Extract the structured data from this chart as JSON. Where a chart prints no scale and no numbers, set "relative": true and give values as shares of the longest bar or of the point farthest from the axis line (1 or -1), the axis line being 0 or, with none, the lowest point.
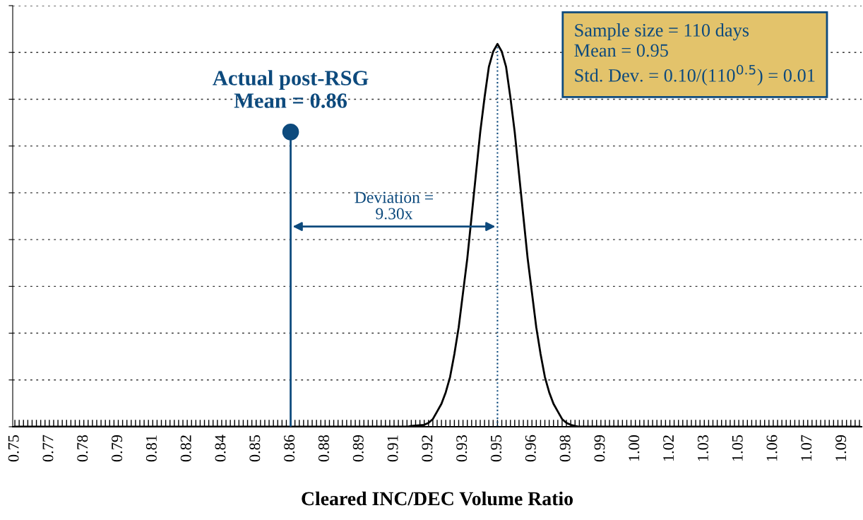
{
  "chart_data": {
    "type": "line",
    "relative": true,
    "xlabel": "Cleared INC/DEC Volume Ratio",
    "grid": "y",
    "tick_labels": "x",
    "legend": false,
    "categories": [
      "0.75",
      null,
      null,
      null,
      null,
      null,
      null,
      null,
      "0.77",
      null,
      null,
      null,
      null,
      null,
      null,
      null,
      "0.78",
      null,
      null,
      null,
      null,
      null,
      null,
      null,
      "0.79",
      null,
      null,
      null,
      null,
      null,
      null,
      null,
      "0.81",
      null,
      null,
      null,
      null,
      null,
      null,
      null,
      "0.82",
      null,
      null,
      null,
      null,
      null,
      null,
      null,
      "0.84",
      null,
      null,
      null,
      null,
      null,
      null,
      null,
      "0.85",
      null,
      null,
      null,
      null,
      null,
      null,
      null,
      "0.86",
      null,
      null,
      null,
      null,
      null,
      null,
      null,
      "0.88",
      null,
      null,
      null,
      null,
      null,
      null,
      null,
      "0.89",
      null,
      null,
      null,
      null,
      null,
      null,
      null,
      "0.91",
      null,
      null,
      null,
      null,
      null,
      null,
      null,
      "0.92",
      null,
      null,
      null,
      null,
      null,
      null,
      null,
      "0.93",
      null,
      null,
      null,
      null,
      null,
      null,
      null,
      "0.95",
      null,
      null,
      null,
      null,
      null,
      null,
      null,
      "0.96",
      null,
      null,
      null,
      null,
      null,
      null,
      null,
      "0.98",
      null,
      null,
      null,
      null,
      null,
      null,
      null,
      "0.99",
      null,
      null,
      null,
      null,
      null,
      null,
      null,
      "1.00",
      null,
      null,
      null,
      null,
      null,
      null,
      null,
      "1.02",
      null,
      null,
      null,
      null,
      null,
      null,
      null,
      "1.03",
      null,
      null,
      null,
      null,
      null,
      null,
      null,
      "1.05",
      null,
      null,
      null,
      null,
      null,
      null,
      null,
      "1.06",
      null,
      null,
      null,
      null,
      null,
      null,
      null,
      "1.07",
      null,
      null,
      null,
      null,
      null,
      null,
      null,
      "1.09",
      null,
      null,
      null,
      null
    ],
    "series": [
      {
        "color": "#000000",
        "line_style": "solid",
        "values": [
          0,
          0,
          0,
          0,
          0,
          0,
          0,
          0,
          0,
          0,
          0,
          0,
          0,
          0,
          0,
          0,
          0,
          0,
          0,
          0,
          0,
          0,
          0,
          0,
          0,
          0,
          0,
          0,
          0,
          0,
          0,
          0,
          0,
          0,
          0,
          0,
          0,
          0,
          0,
          0,
          0,
          0,
          0,
          0,
          0,
          0,
          0,
          0,
          0,
          0,
          0,
          0,
          0,
          0,
          0,
          0,
          0,
          0,
          0,
          0,
          0,
          0,
          0,
          0,
          0,
          0,
          0,
          0,
          0,
          0,
          0,
          0,
          0,
          0,
          0,
          0,
          0,
          0,
          0,
          0,
          0,
          0,
          0,
          0,
          0,
          0,
          0,
          0,
          0,
          0,
          0,
          0,
          0.002,
          0.003,
          0.004,
          0.005,
          0.01,
          0.02,
          0.04,
          0.06,
          0.09,
          0.13,
          0.19,
          0.26,
          0.35,
          0.44,
          0.55,
          0.66,
          0.77,
          0.86,
          0.94,
          0.98,
          1,
          0.98,
          0.94,
          0.86,
          0.77,
          0.66,
          0.55,
          0.44,
          0.35,
          0.26,
          0.19,
          0.13,
          0.09,
          0.06,
          0.04,
          0.02,
          0.01,
          0.005,
          0.002,
          0,
          0,
          0,
          0,
          0,
          0,
          0,
          0,
          0,
          0,
          0,
          0,
          0,
          0,
          0,
          0,
          0,
          0,
          0,
          0,
          0,
          0,
          0,
          0,
          0,
          0,
          0,
          0,
          0,
          0,
          0,
          0,
          0,
          0,
          0,
          0,
          0,
          0,
          0,
          0,
          0,
          0,
          0,
          0,
          0,
          0,
          0,
          0,
          0,
          0,
          0,
          0,
          0,
          0,
          0,
          0,
          0,
          0,
          0,
          0,
          0,
          0,
          0,
          0,
          0,
          0
        ]
      },
      {
        "type": "lollipop",
        "color": "#0d4a7d",
        "marker": "circle",
        "x": [
          "0.86"
        ],
        "values": [
          0.77
        ]
      }
    ],
    "ref_lines": [
      {
        "axis": "x",
        "value": "0.95",
        "color": "#0d4a7d",
        "line_style": "dotted"
      }
    ],
    "annotations": [
      {
        "text": "Actual post-RSG\nMean = 0.86",
        "x": "0.86",
        "y": 0.77
      },
      "Deviation =\n9.30x",
      "Sample size = 110 days\nMean = 0.95\nStd. Dev. = 0.10/(110$^{0.5}$) = 0.01"
    ]
  }
}
